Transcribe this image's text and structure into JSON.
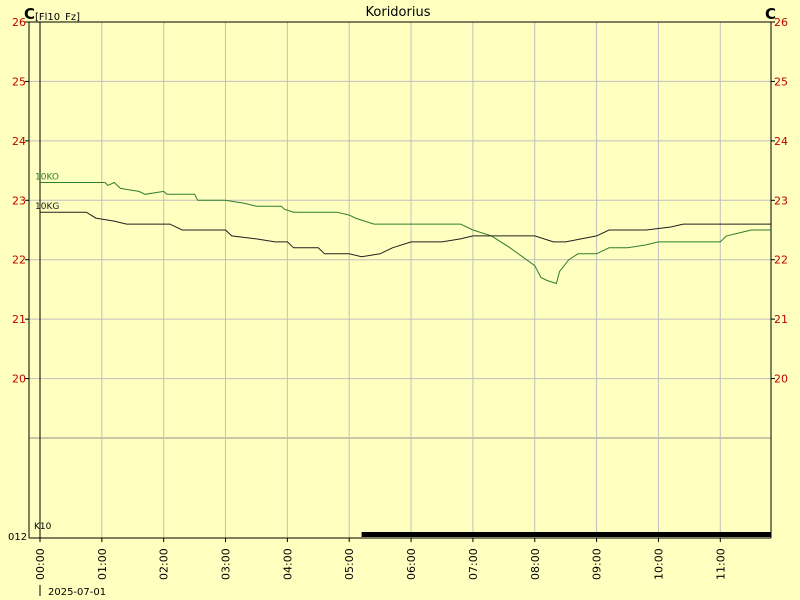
{
  "chart_data": {
    "type": "line",
    "title": "Koridorius",
    "unit_left": "C",
    "unit_right": "C",
    "unit_sub": "[Fl10_Fz]",
    "ylim": [
      19,
      26
    ],
    "y_ticks": [
      20,
      21,
      22,
      23,
      24,
      25,
      26
    ],
    "x_ticks": [
      "00:00",
      "01:00",
      "02:00",
      "03:00",
      "04:00",
      "05:00",
      "06:00",
      "07:00",
      "08:00",
      "09:00",
      "10:00",
      "11:00"
    ],
    "x_range_hours": [
      0,
      11.82
    ],
    "date_label": "2025-07-01",
    "grid": true,
    "colors": {
      "background": "#ffffc0",
      "grid": "#c0c0c0",
      "tick_left": "#c00000",
      "tick_right": "#c00000",
      "series_green": "#2e7d2e",
      "series_black": "#202020"
    },
    "series": [
      {
        "name": "10KO",
        "color": "#2e7d2e",
        "points": [
          [
            0.0,
            23.3
          ],
          [
            1.05,
            23.3
          ],
          [
            1.1,
            23.25
          ],
          [
            1.2,
            23.3
          ],
          [
            1.3,
            23.2
          ],
          [
            1.6,
            23.15
          ],
          [
            1.7,
            23.1
          ],
          [
            2.0,
            23.15
          ],
          [
            2.05,
            23.1
          ],
          [
            2.5,
            23.1
          ],
          [
            2.55,
            23.0
          ],
          [
            3.0,
            23.0
          ],
          [
            3.3,
            22.95
          ],
          [
            3.5,
            22.9
          ],
          [
            3.9,
            22.9
          ],
          [
            3.95,
            22.85
          ],
          [
            4.1,
            22.8
          ],
          [
            4.8,
            22.8
          ],
          [
            5.0,
            22.75
          ],
          [
            5.1,
            22.7
          ],
          [
            5.4,
            22.6
          ],
          [
            6.0,
            22.6
          ],
          [
            6.8,
            22.6
          ],
          [
            6.9,
            22.55
          ],
          [
            7.0,
            22.5
          ],
          [
            7.3,
            22.4
          ],
          [
            7.6,
            22.2
          ],
          [
            7.8,
            22.05
          ],
          [
            8.0,
            21.9
          ],
          [
            8.1,
            21.7
          ],
          [
            8.2,
            21.65
          ],
          [
            8.35,
            21.6
          ],
          [
            8.4,
            21.8
          ],
          [
            8.55,
            22.0
          ],
          [
            8.7,
            22.1
          ],
          [
            9.0,
            22.1
          ],
          [
            9.2,
            22.2
          ],
          [
            9.5,
            22.2
          ],
          [
            9.8,
            22.25
          ],
          [
            10.0,
            22.3
          ],
          [
            11.0,
            22.3
          ],
          [
            11.1,
            22.4
          ],
          [
            11.3,
            22.45
          ],
          [
            11.5,
            22.5
          ],
          [
            11.82,
            22.5
          ]
        ]
      },
      {
        "name": "10KG",
        "color": "#202020",
        "points": [
          [
            0.0,
            22.8
          ],
          [
            0.75,
            22.8
          ],
          [
            0.9,
            22.7
          ],
          [
            1.2,
            22.65
          ],
          [
            1.4,
            22.6
          ],
          [
            2.1,
            22.6
          ],
          [
            2.3,
            22.5
          ],
          [
            3.0,
            22.5
          ],
          [
            3.1,
            22.4
          ],
          [
            3.5,
            22.35
          ],
          [
            3.8,
            22.3
          ],
          [
            4.0,
            22.3
          ],
          [
            4.1,
            22.2
          ],
          [
            4.5,
            22.2
          ],
          [
            4.6,
            22.1
          ],
          [
            5.0,
            22.1
          ],
          [
            5.2,
            22.05
          ],
          [
            5.5,
            22.1
          ],
          [
            5.7,
            22.2
          ],
          [
            6.0,
            22.3
          ],
          [
            6.5,
            22.3
          ],
          [
            6.8,
            22.35
          ],
          [
            7.0,
            22.4
          ],
          [
            7.5,
            22.4
          ],
          [
            8.0,
            22.4
          ],
          [
            8.3,
            22.3
          ],
          [
            8.5,
            22.3
          ],
          [
            9.0,
            22.4
          ],
          [
            9.2,
            22.5
          ],
          [
            9.8,
            22.5
          ],
          [
            10.2,
            22.55
          ],
          [
            10.4,
            22.6
          ],
          [
            11.0,
            22.6
          ],
          [
            11.82,
            22.6
          ]
        ]
      },
      {
        "name": "K10",
        "color": "#000000",
        "step": true,
        "points": [
          [
            0.0,
            0
          ],
          [
            5.2,
            0
          ],
          [
            5.2,
            1
          ],
          [
            11.82,
            1
          ]
        ]
      }
    ],
    "bottom_axis_label": "012"
  }
}
